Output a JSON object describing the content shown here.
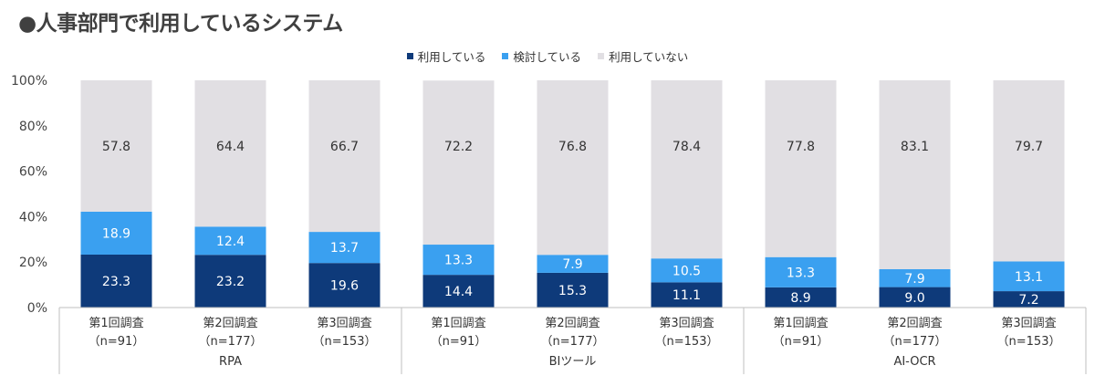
{
  "title": "●人事部門で利用しているシステム",
  "colors": {
    "using": "#0e3a7a",
    "considering": "#3aa0f0",
    "not_using": "#e1dfe3",
    "axis": "#bfbfbf"
  },
  "legend": [
    {
      "label": "利用している",
      "color": "#0e3a7a"
    },
    {
      "label": "検討している",
      "color": "#3aa0f0"
    },
    {
      "label": "利用していない",
      "color": "#e1dfe3"
    }
  ],
  "chart_data": {
    "type": "bar",
    "stacked": true,
    "percent_stacked": true,
    "title": "●人事部門で利用しているシステム",
    "ylim": [
      0,
      100
    ],
    "yticks": [
      "0%",
      "20%",
      "40%",
      "60%",
      "80%",
      "100%"
    ],
    "grid": false,
    "legend_position": "top-center",
    "groups": [
      "RPA",
      "BIツール",
      "AI-OCR"
    ],
    "categories": [
      {
        "line1": "第1回調査",
        "line2": "（n=91）",
        "group": "RPA"
      },
      {
        "line1": "第2回調査",
        "line2": "（n=177）",
        "group": "RPA"
      },
      {
        "line1": "第3回調査",
        "line2": "（n=153）",
        "group": "RPA"
      },
      {
        "line1": "第1回調査",
        "line2": "（n=91）",
        "group": "BIツール"
      },
      {
        "line1": "第2回調査",
        "line2": "（n=177）",
        "group": "BIツール"
      },
      {
        "line1": "第3回調査",
        "line2": "（n=153）",
        "group": "BIツール"
      },
      {
        "line1": "第1回調査",
        "line2": "（n=91）",
        "group": "AI-OCR"
      },
      {
        "line1": "第2回調査",
        "line2": "（n=177）",
        "group": "AI-OCR"
      },
      {
        "line1": "第3回調査",
        "line2": "（n=153）",
        "group": "AI-OCR"
      }
    ],
    "series": [
      {
        "name": "利用している",
        "values": [
          23.3,
          23.2,
          19.6,
          14.4,
          15.3,
          11.1,
          8.9,
          9.0,
          7.2
        ],
        "labels": [
          "23.3",
          "23.2",
          "19.6",
          "14.4",
          "15.3",
          "11.1",
          "8.9",
          "9.0",
          "7.2"
        ]
      },
      {
        "name": "検討している",
        "values": [
          18.9,
          12.4,
          13.7,
          13.3,
          7.9,
          10.5,
          13.3,
          7.9,
          13.1
        ],
        "labels": [
          "18.9",
          "12.4",
          "13.7",
          "13.3",
          "7.9",
          "10.5",
          "13.3",
          "7.9",
          "13.1"
        ]
      },
      {
        "name": "利用していない",
        "values": [
          57.8,
          64.4,
          66.7,
          72.2,
          76.8,
          78.4,
          77.8,
          83.1,
          79.7
        ],
        "labels": [
          "57.8",
          "64.4",
          "66.7",
          "72.2",
          "76.8",
          "78.4",
          "77.8",
          "83.1",
          "79.7"
        ]
      }
    ]
  }
}
